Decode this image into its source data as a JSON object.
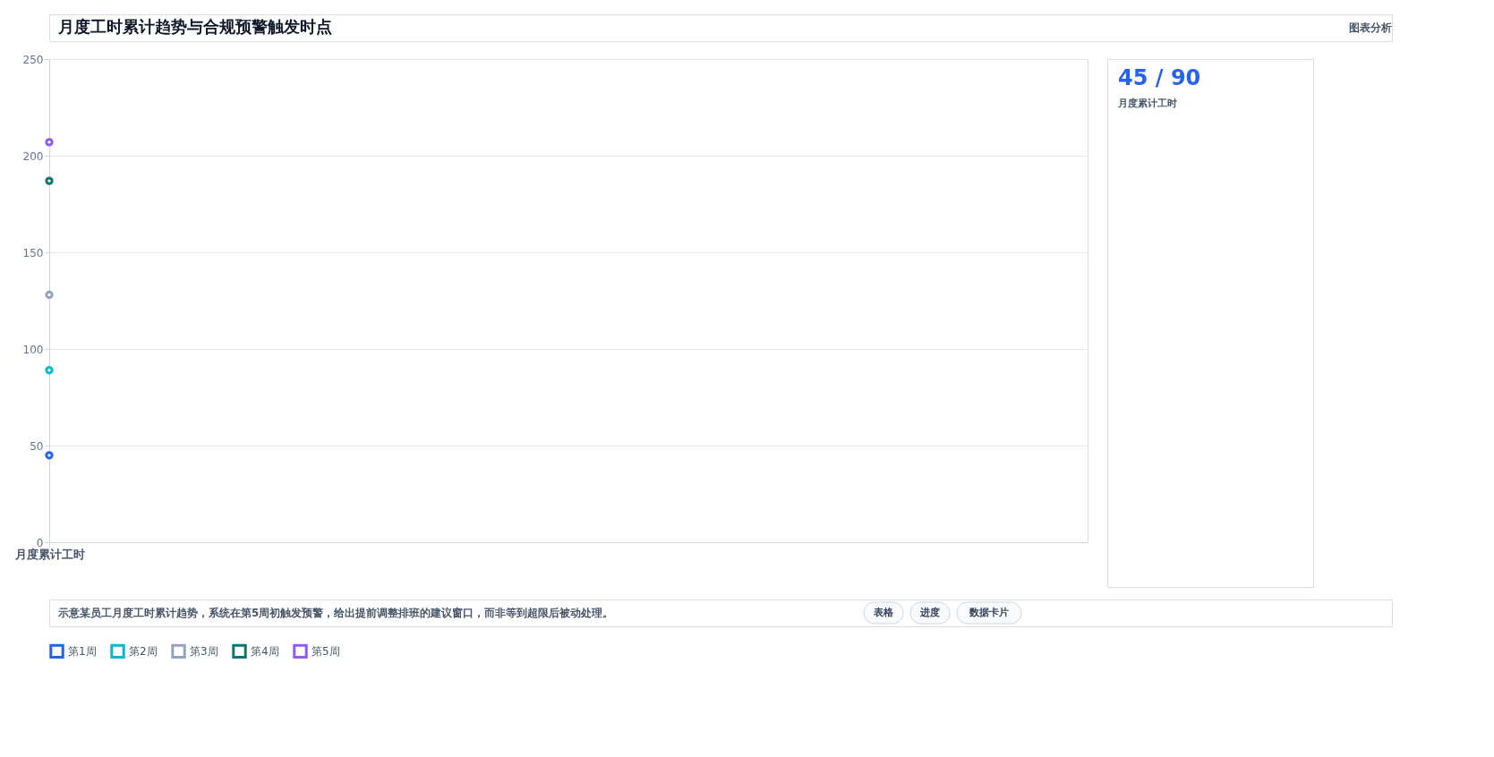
{
  "chart_data": [
    {
      "type": "line",
      "title": "月度工时累计趋势与合规预警触发时点",
      "categories": [
        "月度累计工时"
      ],
      "series": [
        {
          "name": "第1周",
          "color": "#2563eb",
          "values": [
            45
          ]
        },
        {
          "name": "第2周",
          "color": "#06b6d4",
          "values": [
            89
          ]
        },
        {
          "name": "第3周",
          "color": "#94a3b8",
          "values": [
            128
          ]
        },
        {
          "name": "第4周",
          "color": "#0f766e",
          "values": [
            187
          ]
        },
        {
          "name": "第5周",
          "color": "#8b5cf6",
          "values": [
            207
          ]
        }
      ],
      "ylim": [
        0,
        250
      ],
      "yticks": [
        0,
        50,
        100,
        150,
        200,
        250
      ],
      "grid": "y",
      "legend": "bottom",
      "marker": "circle",
      "annotations": [
        "图表分析",
        "示意某员工月度工时累计趋势，系统在第5周初触发预警，给出提前调整排班的建议窗口，而非等到超限后被动处理。",
        "表格",
        "进度",
        "数据卡片"
      ]
    },
    {
      "type": "other",
      "title": "45 / 90",
      "subtitle": "月度累计工时"
    }
  ]
}
